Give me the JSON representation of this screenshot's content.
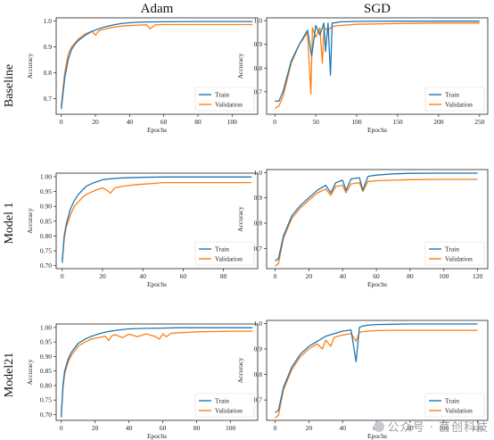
{
  "figure": {
    "column_titles": [
      "Adam",
      "SGD"
    ],
    "row_labels": [
      "Baseline",
      "Model 1",
      "Model21"
    ],
    "watermark": "公众号 · 莒创科技"
  },
  "chart_data": [
    {
      "type": "line",
      "row": "Baseline",
      "optimizer": "Adam",
      "xlabel": "Epochs",
      "ylabel": "Accuracy",
      "xlim": [
        -3,
        115
      ],
      "ylim": [
        0.64,
        1.012
      ],
      "xticks": [
        0,
        20,
        40,
        60,
        80,
        100
      ],
      "yticks": [
        0.7,
        0.8,
        0.9,
        1.0
      ],
      "ytick_labels": [
        "0.7",
        "0.8",
        "0.9",
        "1.0"
      ],
      "legend": "lower-right",
      "series": [
        {
          "name": "Train",
          "color": "#1f77b4",
          "x": [
            0,
            2,
            4,
            6,
            8,
            10,
            14,
            18,
            22,
            26,
            30,
            35,
            40,
            45,
            50,
            60,
            80,
            100,
            112
          ],
          "y": [
            0.66,
            0.78,
            0.85,
            0.89,
            0.91,
            0.925,
            0.945,
            0.96,
            0.97,
            0.978,
            0.984,
            0.99,
            0.993,
            0.995,
            0.996,
            0.997,
            0.998,
            0.998,
            0.998
          ]
        },
        {
          "name": "Validation",
          "color": "#ff7f0e",
          "x": [
            0,
            2,
            4,
            6,
            8,
            10,
            14,
            18,
            20,
            22,
            26,
            30,
            35,
            40,
            45,
            50,
            52,
            55,
            60,
            70,
            80,
            100,
            112
          ],
          "y": [
            0.67,
            0.8,
            0.87,
            0.9,
            0.915,
            0.93,
            0.95,
            0.96,
            0.945,
            0.962,
            0.97,
            0.975,
            0.98,
            0.982,
            0.984,
            0.985,
            0.97,
            0.985,
            0.986,
            0.986,
            0.986,
            0.986,
            0.986
          ]
        }
      ]
    },
    {
      "type": "line",
      "row": "Baseline",
      "optimizer": "SGD",
      "xlabel": "Epochs",
      "ylabel": "Accuracy",
      "xlim": [
        -10,
        260
      ],
      "ylim": [
        0.605,
        1.012
      ],
      "xticks": [
        0,
        50,
        100,
        150,
        200,
        250
      ],
      "yticks": [
        0.7,
        0.8,
        0.9,
        1.0
      ],
      "ytick_labels": [
        "0.7",
        "0.8",
        "0.9",
        "1.0"
      ],
      "legend": "lower-right",
      "series": [
        {
          "name": "Train",
          "color": "#1f77b4",
          "x": [
            0,
            5,
            10,
            20,
            30,
            40,
            45,
            50,
            55,
            60,
            62,
            65,
            68,
            70,
            75,
            80,
            100,
            150,
            200,
            250
          ],
          "y": [
            0.66,
            0.66,
            0.7,
            0.83,
            0.9,
            0.96,
            0.85,
            0.98,
            0.94,
            0.99,
            0.87,
            0.99,
            0.77,
            0.99,
            0.992,
            0.995,
            0.997,
            0.998,
            0.998,
            0.998
          ]
        },
        {
          "name": "Validation",
          "color": "#ff7f0e",
          "x": [
            0,
            5,
            10,
            20,
            30,
            40,
            44,
            46,
            50,
            55,
            58,
            60,
            65,
            70,
            75,
            80,
            100,
            150,
            200,
            250
          ],
          "y": [
            0.63,
            0.64,
            0.68,
            0.82,
            0.9,
            0.95,
            0.69,
            0.97,
            0.93,
            0.97,
            0.82,
            0.97,
            0.96,
            0.975,
            0.978,
            0.98,
            0.985,
            0.988,
            0.99,
            0.99
          ]
        }
      ]
    },
    {
      "type": "line",
      "row": "Model 1",
      "optimizer": "Adam",
      "xlabel": "Epochs",
      "ylabel": "Accuracy",
      "xlim": [
        -3,
        97
      ],
      "ylim": [
        0.69,
        1.012
      ],
      "xticks": [
        0,
        20,
        40,
        60,
        80
      ],
      "yticks": [
        0.7,
        0.75,
        0.8,
        0.85,
        0.9,
        0.95,
        1.0
      ],
      "ytick_labels": [
        "0.70",
        "0.75",
        "0.80",
        "0.85",
        "0.90",
        "0.95",
        "1.00"
      ],
      "legend": "lower-right",
      "series": [
        {
          "name": "Train",
          "color": "#1f77b4",
          "x": [
            0,
            1,
            2,
            4,
            6,
            8,
            10,
            12,
            15,
            18,
            20,
            24,
            30,
            40,
            50,
            60,
            80,
            94
          ],
          "y": [
            0.71,
            0.8,
            0.84,
            0.89,
            0.92,
            0.94,
            0.955,
            0.968,
            0.978,
            0.985,
            0.99,
            0.993,
            0.996,
            0.998,
            0.999,
            0.999,
            0.999,
            0.999
          ]
        },
        {
          "name": "Validation",
          "color": "#ff7f0e",
          "x": [
            0,
            1,
            2,
            4,
            6,
            8,
            10,
            12,
            15,
            18,
            20,
            22,
            24,
            26,
            30,
            35,
            40,
            45,
            50,
            60,
            80,
            94
          ],
          "y": [
            0.72,
            0.79,
            0.83,
            0.87,
            0.9,
            0.915,
            0.93,
            0.94,
            0.95,
            0.958,
            0.962,
            0.955,
            0.945,
            0.962,
            0.968,
            0.972,
            0.975,
            0.977,
            0.98,
            0.98,
            0.98,
            0.98
          ]
        }
      ]
    },
    {
      "type": "line",
      "row": "Model 1",
      "optimizer": "SGD",
      "xlabel": "Epochs",
      "ylabel": "Accuracy",
      "xlim": [
        -5,
        126
      ],
      "ylim": [
        0.62,
        1.012
      ],
      "xticks": [
        0,
        20,
        40,
        60,
        80,
        100,
        120
      ],
      "yticks": [
        0.7,
        0.8,
        0.9,
        1.0
      ],
      "ytick_labels": [
        "0.7",
        "0.8",
        "0.9",
        "1.0"
      ],
      "legend": "lower-right",
      "series": [
        {
          "name": "Train",
          "color": "#1f77b4",
          "x": [
            0,
            2,
            5,
            10,
            15,
            20,
            25,
            30,
            33,
            36,
            40,
            42,
            45,
            50,
            52,
            55,
            60,
            70,
            80,
            100,
            120
          ],
          "y": [
            0.65,
            0.66,
            0.75,
            0.83,
            0.87,
            0.9,
            0.93,
            0.95,
            0.92,
            0.96,
            0.97,
            0.93,
            0.975,
            0.98,
            0.93,
            0.985,
            0.99,
            0.995,
            0.997,
            0.998,
            0.998
          ]
        },
        {
          "name": "Validation",
          "color": "#ff7f0e",
          "x": [
            0,
            2,
            5,
            10,
            15,
            20,
            25,
            30,
            33,
            36,
            40,
            42,
            45,
            50,
            52,
            55,
            60,
            70,
            80,
            100,
            120
          ],
          "y": [
            0.63,
            0.64,
            0.74,
            0.82,
            0.86,
            0.89,
            0.92,
            0.935,
            0.91,
            0.945,
            0.95,
            0.92,
            0.955,
            0.96,
            0.925,
            0.965,
            0.968,
            0.97,
            0.972,
            0.973,
            0.973
          ]
        }
      ]
    },
    {
      "type": "line",
      "row": "Model21",
      "optimizer": "Adam",
      "xlabel": "Epochs",
      "ylabel": "Accuracy",
      "xlim": [
        -3,
        116
      ],
      "ylim": [
        0.68,
        1.012
      ],
      "xticks": [
        0,
        20,
        40,
        60,
        80,
        100
      ],
      "yticks": [
        0.7,
        0.75,
        0.8,
        0.85,
        0.9,
        0.95,
        1.0
      ],
      "ytick_labels": [
        "0.70",
        "0.75",
        "0.80",
        "0.85",
        "0.90",
        "0.95",
        "1.00"
      ],
      "legend": "lower-right",
      "series": [
        {
          "name": "Train",
          "color": "#1f77b4",
          "x": [
            0,
            1,
            2,
            4,
            6,
            8,
            10,
            14,
            18,
            22,
            26,
            30,
            35,
            40,
            50,
            60,
            70,
            80,
            100,
            113
          ],
          "y": [
            0.69,
            0.8,
            0.85,
            0.89,
            0.915,
            0.93,
            0.945,
            0.96,
            0.97,
            0.978,
            0.984,
            0.988,
            0.992,
            0.995,
            0.997,
            0.998,
            0.999,
            0.999,
            0.999,
            0.999
          ]
        },
        {
          "name": "Validation",
          "color": "#ff7f0e",
          "x": [
            0,
            1,
            2,
            4,
            6,
            8,
            10,
            14,
            18,
            22,
            26,
            28,
            30,
            32,
            36,
            40,
            45,
            50,
            55,
            58,
            60,
            62,
            65,
            70,
            75,
            80,
            90,
            100,
            113
          ],
          "y": [
            0.7,
            0.79,
            0.84,
            0.88,
            0.905,
            0.92,
            0.935,
            0.95,
            0.96,
            0.965,
            0.97,
            0.955,
            0.972,
            0.975,
            0.965,
            0.977,
            0.968,
            0.978,
            0.97,
            0.96,
            0.978,
            0.968,
            0.98,
            0.982,
            0.983,
            0.985,
            0.986,
            0.987,
            0.987
          ]
        }
      ]
    },
    {
      "type": "line",
      "row": "Model21",
      "optimizer": "SGD",
      "xlabel": "Epochs",
      "ylabel": "Accuracy",
      "xlim": [
        -5,
        126
      ],
      "ylim": [
        0.62,
        1.012
      ],
      "xticks": [
        0,
        20,
        40,
        60,
        80,
        100,
        120
      ],
      "yticks": [
        0.7,
        0.8,
        0.9,
        1.0
      ],
      "ytick_labels": [
        "0.7",
        "0.8",
        "0.9",
        "1.0"
      ],
      "legend": "lower-right",
      "series": [
        {
          "name": "Train",
          "color": "#1f77b4",
          "x": [
            0,
            2,
            5,
            10,
            15,
            20,
            25,
            30,
            35,
            40,
            45,
            48,
            50,
            52,
            55,
            60,
            70,
            80,
            100,
            120
          ],
          "y": [
            0.65,
            0.66,
            0.75,
            0.83,
            0.88,
            0.91,
            0.93,
            0.95,
            0.96,
            0.97,
            0.975,
            0.85,
            0.985,
            0.99,
            0.993,
            0.996,
            0.997,
            0.998,
            0.998,
            0.998
          ]
        },
        {
          "name": "Validation",
          "color": "#ff7f0e",
          "x": [
            0,
            2,
            5,
            10,
            15,
            20,
            25,
            28,
            30,
            33,
            35,
            40,
            45,
            48,
            50,
            52,
            55,
            60,
            70,
            80,
            100,
            120
          ],
          "y": [
            0.63,
            0.64,
            0.74,
            0.82,
            0.87,
            0.9,
            0.92,
            0.9,
            0.935,
            0.91,
            0.945,
            0.955,
            0.96,
            0.93,
            0.965,
            0.968,
            0.97,
            0.972,
            0.973,
            0.973,
            0.973,
            0.973
          ]
        }
      ]
    }
  ]
}
